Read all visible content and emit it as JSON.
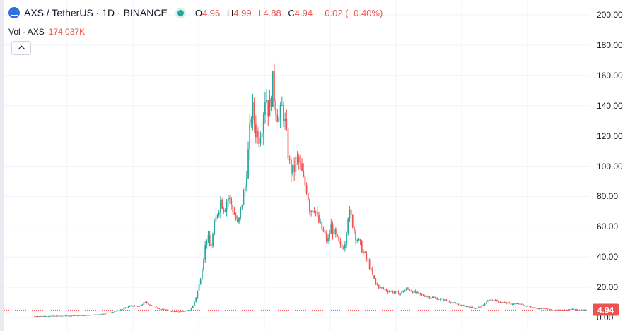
{
  "legend": {
    "symbol": "AXS / TetherUS · 1D · BINANCE",
    "open_label": "O",
    "open": "4.96",
    "high_label": "H",
    "high": "4.99",
    "low_label": "L",
    "low": "4.88",
    "close_label": "C",
    "close": "4.94",
    "change": "−0.02 (−0.40%)"
  },
  "volume": {
    "label": "Vol · AXS",
    "value": "174.037K"
  },
  "last_price": "4.94",
  "colors": {
    "up": "#26a69a",
    "down": "#ef5350",
    "grid": "#f0f3fa",
    "last_price_line": "#ef5350"
  },
  "icons": {
    "coin": "axs-coin-icon",
    "collapse": "chevron-up-icon",
    "status": "market-status-dot-icon"
  },
  "chart_data": {
    "type": "candlestick",
    "title": "AXS / TetherUS · 1D · BINANCE",
    "y_ticks": [
      "200.00",
      "180.00",
      "160.00",
      "140.00",
      "120.00",
      "100.00",
      "80.00",
      "60.00",
      "40.00",
      "20.00",
      "0.00"
    ],
    "ylim": [
      0,
      205
    ],
    "last_close": 4.94,
    "grid": true,
    "series": [
      {
        "name": "AXS/USDT",
        "points": [
          [
            0,
            0.9
          ],
          [
            5,
            1.0
          ],
          [
            10,
            1.2
          ],
          [
            15,
            1.5
          ],
          [
            18,
            2
          ],
          [
            20,
            2.5
          ],
          [
            23,
            4
          ],
          [
            26,
            6
          ],
          [
            28,
            8
          ],
          [
            30,
            7
          ],
          [
            32,
            10
          ],
          [
            34,
            8
          ],
          [
            36,
            6
          ],
          [
            38,
            5
          ],
          [
            40,
            4
          ],
          [
            42,
            4
          ],
          [
            44,
            4.5
          ],
          [
            45,
            5
          ],
          [
            46,
            8
          ],
          [
            47,
            15
          ],
          [
            48,
            25
          ],
          [
            49,
            40
          ],
          [
            50,
            55
          ],
          [
            51,
            45
          ],
          [
            52,
            58
          ],
          [
            53,
            70
          ],
          [
            54,
            78
          ],
          [
            55,
            72
          ],
          [
            56,
            80
          ],
          [
            57,
            75
          ],
          [
            58,
            68
          ],
          [
            59,
            60
          ],
          [
            60,
            75
          ],
          [
            61,
            85
          ],
          [
            62,
            110
          ],
          [
            63,
            140
          ],
          [
            64,
            125
          ],
          [
            65,
            120
          ],
          [
            66,
            130
          ],
          [
            67,
            150
          ],
          [
            68,
            135
          ],
          [
            69,
            155
          ],
          [
            70,
            140
          ],
          [
            71,
            130
          ],
          [
            72,
            140
          ],
          [
            73,
            120
          ],
          [
            74,
            100
          ],
          [
            75,
            95
          ],
          [
            76,
            105
          ],
          [
            77,
            100
          ],
          [
            78,
            90
          ],
          [
            79,
            85
          ],
          [
            80,
            70
          ],
          [
            81,
            75
          ],
          [
            82,
            65
          ],
          [
            83,
            60
          ],
          [
            84,
            55
          ],
          [
            85,
            50
          ],
          [
            86,
            60
          ],
          [
            87,
            55
          ],
          [
            88,
            50
          ],
          [
            89,
            45
          ],
          [
            90,
            50
          ],
          [
            91,
            70
          ],
          [
            92,
            65
          ],
          [
            93,
            55
          ],
          [
            94,
            50
          ],
          [
            95,
            45
          ],
          [
            96,
            40
          ],
          [
            97,
            35
          ],
          [
            98,
            28
          ],
          [
            99,
            22
          ],
          [
            100,
            20
          ],
          [
            102,
            18
          ],
          [
            104,
            17
          ],
          [
            106,
            16
          ],
          [
            108,
            19
          ],
          [
            110,
            17
          ],
          [
            112,
            15
          ],
          [
            114,
            14
          ],
          [
            116,
            13
          ],
          [
            118,
            12
          ],
          [
            120,
            11
          ],
          [
            122,
            9
          ],
          [
            124,
            8
          ],
          [
            126,
            7
          ],
          [
            128,
            6
          ],
          [
            130,
            8
          ],
          [
            132,
            12
          ],
          [
            134,
            11
          ],
          [
            136,
            10
          ],
          [
            138,
            9
          ],
          [
            140,
            9
          ],
          [
            142,
            8
          ],
          [
            144,
            7
          ],
          [
            146,
            6
          ],
          [
            148,
            6
          ],
          [
            150,
            5
          ],
          [
            152,
            5
          ],
          [
            154,
            5
          ],
          [
            156,
            5.5
          ],
          [
            158,
            5
          ],
          [
            160,
            4.94
          ]
        ]
      }
    ]
  }
}
